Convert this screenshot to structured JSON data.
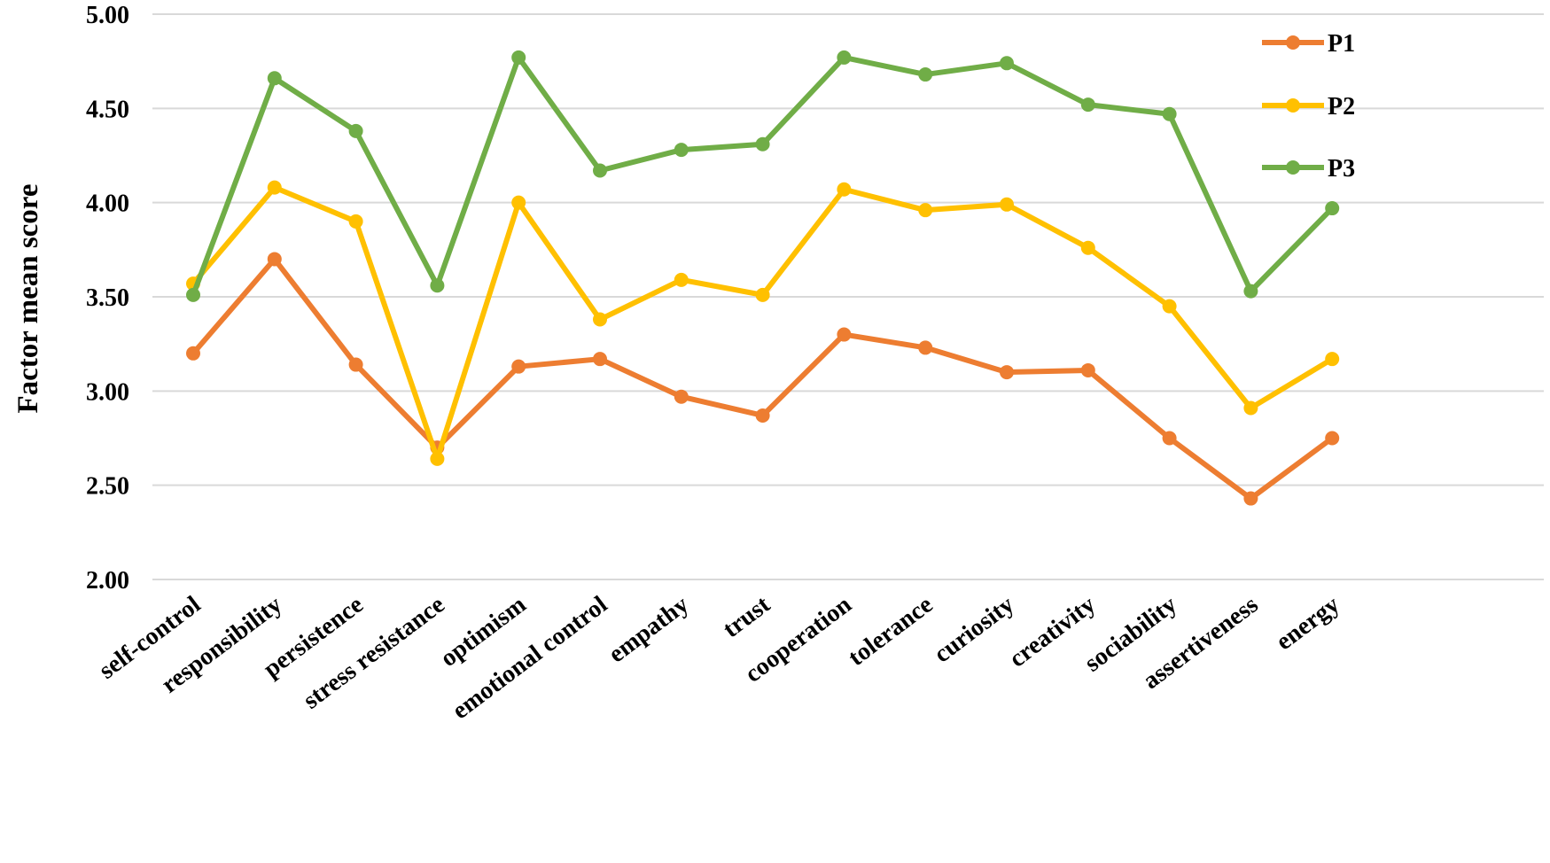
{
  "chart_data": {
    "type": "line",
    "title": "",
    "xlabel": "",
    "ylabel": "Factor mean score",
    "ylim": [
      2.0,
      5.0
    ],
    "yticks": [
      "2.00",
      "2.50",
      "3.00",
      "3.50",
      "4.00",
      "4.50",
      "5.00"
    ],
    "grid": true,
    "legend_position": "top-right",
    "categories": [
      "self-control",
      "responsibility",
      "persistence",
      "stress resistance",
      "optimism",
      "emotional control",
      "empathy",
      "trust",
      "cooperation",
      "tolerance",
      "curiosity",
      "creativity",
      "sociability",
      "assertiveness",
      "energy"
    ],
    "series": [
      {
        "name": "P1",
        "color": "#ED7D31",
        "values": [
          3.2,
          3.7,
          3.14,
          2.7,
          3.13,
          3.17,
          2.97,
          2.87,
          3.3,
          3.23,
          3.1,
          3.11,
          2.75,
          2.43,
          2.75
        ]
      },
      {
        "name": "P2",
        "color": "#FFC000",
        "values": [
          3.57,
          4.08,
          3.9,
          2.64,
          4.0,
          3.38,
          3.59,
          3.51,
          4.07,
          3.96,
          3.99,
          3.76,
          3.45,
          2.91,
          3.17
        ]
      },
      {
        "name": "P3",
        "color": "#70AD47",
        "values": [
          3.51,
          4.66,
          4.38,
          3.56,
          4.77,
          4.17,
          4.28,
          4.31,
          4.77,
          4.68,
          4.74,
          4.52,
          4.47,
          3.53,
          3.97
        ]
      }
    ]
  }
}
